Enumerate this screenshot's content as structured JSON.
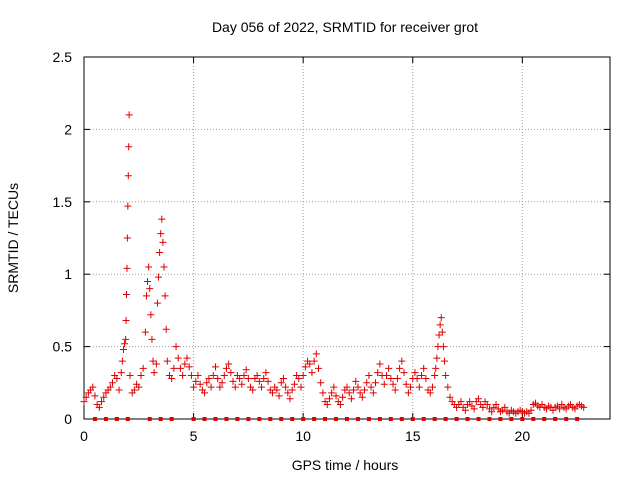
{
  "chart_data": {
    "type": "scatter",
    "title": "Day 056 of 2022, SRMTID for receiver grot",
    "xlabel": "GPS time / hours",
    "ylabel": "SRMTID / TECUs",
    "xlim": [
      0,
      24
    ],
    "ylim": [
      0,
      2.5
    ],
    "xticks": [
      0,
      5,
      10,
      15,
      20
    ],
    "xtick_labels": [
      "0",
      "5",
      "10",
      "15",
      "20"
    ],
    "yticks": [
      0,
      0.5,
      1,
      1.5,
      2,
      2.5
    ],
    "ytick_labels": [
      "0",
      "0.5",
      "1",
      "1.5",
      "2",
      "2.5"
    ],
    "grid": true,
    "marker": "plus",
    "color": "#e00000",
    "series": [
      {
        "name": "SRMTID",
        "points": [
          [
            0.0,
            0.12
          ],
          [
            0.1,
            0.15
          ],
          [
            0.2,
            0.18
          ],
          [
            0.3,
            0.2
          ],
          [
            0.4,
            0.22
          ],
          [
            0.5,
            0.16
          ],
          [
            0.6,
            0.1
          ],
          [
            0.7,
            0.08
          ],
          [
            0.8,
            0.12
          ],
          [
            0.9,
            0.15
          ],
          [
            1.0,
            0.18
          ],
          [
            1.1,
            0.2
          ],
          [
            1.2,
            0.22
          ],
          [
            1.3,
            0.25
          ],
          [
            1.4,
            0.3
          ],
          [
            1.5,
            0.28
          ],
          [
            1.6,
            0.2
          ],
          [
            1.7,
            0.32
          ],
          [
            1.75,
            0.4
          ],
          [
            1.8,
            0.48
          ],
          [
            1.85,
            0.52
          ],
          [
            1.9,
            0.55
          ],
          [
            1.92,
            0.68
          ],
          [
            1.94,
            0.86
          ],
          [
            1.96,
            1.04
          ],
          [
            1.98,
            1.25
          ],
          [
            2.0,
            1.47
          ],
          [
            2.02,
            1.68
          ],
          [
            2.04,
            1.88
          ],
          [
            2.06,
            2.1
          ],
          [
            2.1,
            0.3
          ],
          [
            2.2,
            0.18
          ],
          [
            2.3,
            0.2
          ],
          [
            2.4,
            0.24
          ],
          [
            2.5,
            0.22
          ],
          [
            2.6,
            0.3
          ],
          [
            2.7,
            0.35
          ],
          [
            2.8,
            0.6
          ],
          [
            2.85,
            0.85
          ],
          [
            2.9,
            0.95
          ],
          [
            2.95,
            1.05
          ],
          [
            3.0,
            0.9
          ],
          [
            3.05,
            0.72
          ],
          [
            3.1,
            0.55
          ],
          [
            3.15,
            0.4
          ],
          [
            3.2,
            0.32
          ],
          [
            3.3,
            0.38
          ],
          [
            3.35,
            0.8
          ],
          [
            3.4,
            0.98
          ],
          [
            3.45,
            1.15
          ],
          [
            3.5,
            1.28
          ],
          [
            3.55,
            1.38
          ],
          [
            3.6,
            1.22
          ],
          [
            3.65,
            1.05
          ],
          [
            3.7,
            0.85
          ],
          [
            3.75,
            0.62
          ],
          [
            3.8,
            0.4
          ],
          [
            3.9,
            0.3
          ],
          [
            4.0,
            0.28
          ],
          [
            4.1,
            0.35
          ],
          [
            4.2,
            0.5
          ],
          [
            4.3,
            0.42
          ],
          [
            4.4,
            0.35
          ],
          [
            4.5,
            0.3
          ],
          [
            4.6,
            0.38
          ],
          [
            4.7,
            0.42
          ],
          [
            4.8,
            0.36
          ],
          [
            4.9,
            0.3
          ],
          [
            5.0,
            0.22
          ],
          [
            5.1,
            0.26
          ],
          [
            5.2,
            0.3
          ],
          [
            5.3,
            0.24
          ],
          [
            5.4,
            0.2
          ],
          [
            5.5,
            0.18
          ],
          [
            5.6,
            0.25
          ],
          [
            5.7,
            0.28
          ],
          [
            5.8,
            0.22
          ],
          [
            5.9,
            0.3
          ],
          [
            6.0,
            0.36
          ],
          [
            6.1,
            0.28
          ],
          [
            6.2,
            0.22
          ],
          [
            6.3,
            0.25
          ],
          [
            6.4,
            0.3
          ],
          [
            6.5,
            0.35
          ],
          [
            6.6,
            0.38
          ],
          [
            6.7,
            0.32
          ],
          [
            6.8,
            0.26
          ],
          [
            6.9,
            0.22
          ],
          [
            7.0,
            0.3
          ],
          [
            7.1,
            0.28
          ],
          [
            7.2,
            0.24
          ],
          [
            7.3,
            0.3
          ],
          [
            7.4,
            0.34
          ],
          [
            7.5,
            0.28
          ],
          [
            7.6,
            0.22
          ],
          [
            7.7,
            0.2
          ],
          [
            7.8,
            0.28
          ],
          [
            7.9,
            0.3
          ],
          [
            8.0,
            0.26
          ],
          [
            8.1,
            0.22
          ],
          [
            8.2,
            0.28
          ],
          [
            8.3,
            0.32
          ],
          [
            8.4,
            0.26
          ],
          [
            8.5,
            0.2
          ],
          [
            8.6,
            0.18
          ],
          [
            8.7,
            0.22
          ],
          [
            8.8,
            0.2
          ],
          [
            8.9,
            0.16
          ],
          [
            9.0,
            0.25
          ],
          [
            9.1,
            0.28
          ],
          [
            9.2,
            0.22
          ],
          [
            9.3,
            0.18
          ],
          [
            9.4,
            0.14
          ],
          [
            9.5,
            0.2
          ],
          [
            9.6,
            0.24
          ],
          [
            9.7,
            0.3
          ],
          [
            9.8,
            0.28
          ],
          [
            9.9,
            0.22
          ],
          [
            10.0,
            0.3
          ],
          [
            10.1,
            0.36
          ],
          [
            10.2,
            0.4
          ],
          [
            10.3,
            0.38
          ],
          [
            10.4,
            0.32
          ],
          [
            10.5,
            0.4
          ],
          [
            10.6,
            0.45
          ],
          [
            10.7,
            0.35
          ],
          [
            10.8,
            0.25
          ],
          [
            10.9,
            0.18
          ],
          [
            11.0,
            0.12
          ],
          [
            11.1,
            0.1
          ],
          [
            11.2,
            0.14
          ],
          [
            11.3,
            0.18
          ],
          [
            11.4,
            0.22
          ],
          [
            11.5,
            0.16
          ],
          [
            11.6,
            0.12
          ],
          [
            11.7,
            0.1
          ],
          [
            11.8,
            0.15
          ],
          [
            11.9,
            0.2
          ],
          [
            12.0,
            0.22
          ],
          [
            12.1,
            0.18
          ],
          [
            12.2,
            0.14
          ],
          [
            12.3,
            0.2
          ],
          [
            12.4,
            0.26
          ],
          [
            12.5,
            0.22
          ],
          [
            12.6,
            0.18
          ],
          [
            12.7,
            0.15
          ],
          [
            12.8,
            0.2
          ],
          [
            12.9,
            0.25
          ],
          [
            13.0,
            0.3
          ],
          [
            13.1,
            0.22
          ],
          [
            13.2,
            0.18
          ],
          [
            13.3,
            0.25
          ],
          [
            13.4,
            0.32
          ],
          [
            13.5,
            0.38
          ],
          [
            13.6,
            0.3
          ],
          [
            13.7,
            0.24
          ],
          [
            13.8,
            0.3
          ],
          [
            13.9,
            0.35
          ],
          [
            14.0,
            0.28
          ],
          [
            14.1,
            0.24
          ],
          [
            14.2,
            0.2
          ],
          [
            14.3,
            0.28
          ],
          [
            14.4,
            0.35
          ],
          [
            14.5,
            0.4
          ],
          [
            14.6,
            0.32
          ],
          [
            14.7,
            0.24
          ],
          [
            14.8,
            0.18
          ],
          [
            14.9,
            0.22
          ],
          [
            15.0,
            0.28
          ],
          [
            15.1,
            0.32
          ],
          [
            15.2,
            0.28
          ],
          [
            15.3,
            0.22
          ],
          [
            15.4,
            0.3
          ],
          [
            15.5,
            0.35
          ],
          [
            15.6,
            0.28
          ],
          [
            15.7,
            0.2
          ],
          [
            15.8,
            0.18
          ],
          [
            15.9,
            0.22
          ],
          [
            16.0,
            0.3
          ],
          [
            16.05,
            0.35
          ],
          [
            16.1,
            0.42
          ],
          [
            16.15,
            0.5
          ],
          [
            16.2,
            0.58
          ],
          [
            16.25,
            0.65
          ],
          [
            16.3,
            0.7
          ],
          [
            16.35,
            0.6
          ],
          [
            16.4,
            0.5
          ],
          [
            16.45,
            0.4
          ],
          [
            16.5,
            0.3
          ],
          [
            16.6,
            0.22
          ],
          [
            16.7,
            0.15
          ],
          [
            16.8,
            0.12
          ],
          [
            16.9,
            0.1
          ],
          [
            17.0,
            0.08
          ],
          [
            17.1,
            0.1
          ],
          [
            17.2,
            0.12
          ],
          [
            17.3,
            0.08
          ],
          [
            17.4,
            0.06
          ],
          [
            17.5,
            0.1
          ],
          [
            17.6,
            0.12
          ],
          [
            17.7,
            0.09
          ],
          [
            17.8,
            0.07
          ],
          [
            17.9,
            0.12
          ],
          [
            18.0,
            0.14
          ],
          [
            18.1,
            0.1
          ],
          [
            18.2,
            0.08
          ],
          [
            18.3,
            0.12
          ],
          [
            18.4,
            0.1
          ],
          [
            18.5,
            0.07
          ],
          [
            18.6,
            0.05
          ],
          [
            18.7,
            0.08
          ],
          [
            18.8,
            0.1
          ],
          [
            18.9,
            0.07
          ],
          [
            19.0,
            0.05
          ],
          [
            19.1,
            0.06
          ],
          [
            19.2,
            0.08
          ],
          [
            19.3,
            0.05
          ],
          [
            19.4,
            0.04
          ],
          [
            19.5,
            0.06
          ],
          [
            19.6,
            0.05
          ],
          [
            19.7,
            0.04
          ],
          [
            19.8,
            0.05
          ],
          [
            19.9,
            0.06
          ],
          [
            20.0,
            0.05
          ],
          [
            20.1,
            0.04
          ],
          [
            20.2,
            0.05
          ],
          [
            20.3,
            0.04
          ],
          [
            20.4,
            0.06
          ],
          [
            20.5,
            0.1
          ],
          [
            20.6,
            0.11
          ],
          [
            20.7,
            0.09
          ],
          [
            20.8,
            0.08
          ],
          [
            20.9,
            0.1
          ],
          [
            21.0,
            0.08
          ],
          [
            21.1,
            0.07
          ],
          [
            21.2,
            0.09
          ],
          [
            21.3,
            0.08
          ],
          [
            21.4,
            0.06
          ],
          [
            21.5,
            0.08
          ],
          [
            21.6,
            0.09
          ],
          [
            21.7,
            0.07
          ],
          [
            21.8,
            0.1
          ],
          [
            21.9,
            0.08
          ],
          [
            22.0,
            0.07
          ],
          [
            22.1,
            0.09
          ],
          [
            22.2,
            0.1
          ],
          [
            22.3,
            0.08
          ],
          [
            22.4,
            0.07
          ],
          [
            22.5,
            0.09
          ],
          [
            22.6,
            0.1
          ],
          [
            22.7,
            0.09
          ],
          [
            22.8,
            0.08
          ]
        ]
      },
      {
        "name": "zero-level markers",
        "points": [
          [
            0.5,
            0
          ],
          [
            1.0,
            0
          ],
          [
            1.5,
            0
          ],
          [
            2.0,
            0
          ],
          [
            3.0,
            0
          ],
          [
            3.5,
            0
          ],
          [
            4.0,
            0
          ],
          [
            5.0,
            0
          ],
          [
            5.5,
            0
          ],
          [
            6.0,
            0
          ],
          [
            6.5,
            0
          ],
          [
            7.0,
            0
          ],
          [
            7.5,
            0
          ],
          [
            8.0,
            0
          ],
          [
            8.5,
            0
          ],
          [
            9.0,
            0
          ],
          [
            9.5,
            0
          ],
          [
            10.0,
            0
          ],
          [
            10.5,
            0
          ],
          [
            11.0,
            0
          ],
          [
            11.5,
            0
          ],
          [
            12.0,
            0
          ],
          [
            12.5,
            0
          ],
          [
            13.0,
            0
          ],
          [
            13.5,
            0
          ],
          [
            14.0,
            0
          ],
          [
            14.5,
            0
          ],
          [
            15.0,
            0
          ],
          [
            15.5,
            0
          ],
          [
            16.0,
            0
          ],
          [
            16.5,
            0
          ],
          [
            17.0,
            0
          ],
          [
            17.5,
            0
          ],
          [
            18.0,
            0
          ],
          [
            18.5,
            0
          ],
          [
            19.0,
            0
          ],
          [
            19.5,
            0
          ],
          [
            20.0,
            0
          ],
          [
            20.5,
            0
          ],
          [
            21.0,
            0
          ],
          [
            21.5,
            0
          ],
          [
            22.0,
            0
          ],
          [
            22.5,
            0
          ]
        ]
      }
    ]
  }
}
